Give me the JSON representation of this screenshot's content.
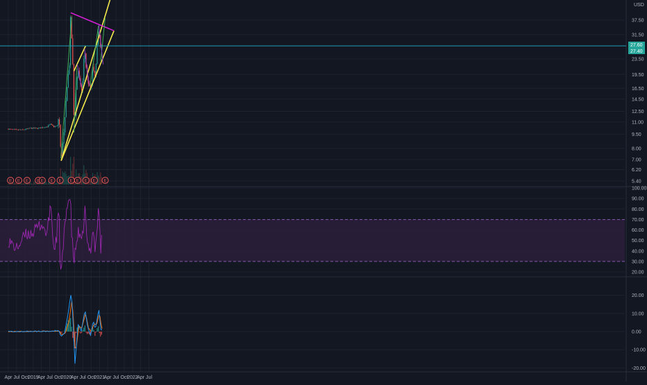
{
  "currency": "USD",
  "price_tags": {
    "upper": "27.60",
    "lower": "27.40"
  },
  "earnings_label": "E",
  "colors": {
    "background": "#131722",
    "grid": "#1e222d",
    "up": "#26a69a",
    "down": "#ef5350",
    "trendline_yellow": "#f5e94d",
    "trendline_magenta": "#d61fd6",
    "horizontal": "#1e9bb5",
    "green_leg": "#3fae55",
    "purple_leg": "#8c3ec4",
    "rsi": "#9c27b0",
    "rsi_band": "#2c1f3a",
    "macd": "#2196f3",
    "signal": "#ff6d00",
    "earnings": "#f05a5a"
  },
  "chart_data": [
    {
      "type": "candlestick",
      "scale": "log",
      "y_ticks": [
        5.4,
        6.2,
        7.0,
        8.0,
        9.5,
        11.0,
        12.5,
        14.5,
        16.5,
        19.5,
        23.5,
        27.5,
        31.5,
        37.5
      ],
      "y_tick_labels": [
        "5.40",
        "6.20",
        "7.00",
        "8.00",
        "9.50",
        "11.00",
        "12.50",
        "14.50",
        "16.50",
        "19.50",
        "23.50",
        "27.50",
        "31.50",
        "37.50"
      ],
      "close_path": [
        [
          "2018-04-01",
          10.1
        ],
        [
          "2018-06-15",
          10.0
        ],
        [
          "2018-09-01",
          10.0
        ],
        [
          "2018-12-01",
          10.2
        ],
        [
          "2019-03-01",
          10.2
        ],
        [
          "2019-06-01",
          10.4
        ],
        [
          "2019-07-10",
          10.7
        ],
        [
          "2019-08-15",
          10.4
        ],
        [
          "2019-10-01",
          10.5
        ],
        [
          "2019-10-10",
          12.8
        ],
        [
          "2019-10-20",
          9.8
        ],
        [
          "2019-11-05",
          7.0
        ],
        [
          "2019-12-10",
          10.0
        ],
        [
          "2020-01-10",
          17.0
        ],
        [
          "2020-02-08",
          23.0
        ],
        [
          "2020-02-18",
          41.0
        ],
        [
          "2020-02-28",
          31.0
        ],
        [
          "2020-03-15",
          20.0
        ],
        [
          "2020-03-28",
          9.8
        ],
        [
          "2020-04-20",
          17.0
        ],
        [
          "2020-05-10",
          21.0
        ],
        [
          "2020-06-01",
          17.0
        ],
        [
          "2020-06-25",
          16.0
        ],
        [
          "2020-07-20",
          27.0
        ],
        [
          "2020-08-15",
          19.0
        ],
        [
          "2020-09-10",
          17.0
        ],
        [
          "2020-10-05",
          16.5
        ],
        [
          "2020-10-20",
          22.0
        ],
        [
          "2020-11-10",
          18.0
        ],
        [
          "2020-12-05",
          27.0
        ],
        [
          "2020-12-25",
          34.0
        ],
        [
          "2021-01-10",
          27.0
        ],
        [
          "2021-01-25",
          26.0
        ],
        [
          "2021-02-03",
          27.5
        ]
      ],
      "earnings_dates": [
        "2018-04-25",
        "2018-07-25",
        "2018-10-25",
        "2019-02-26",
        "2019-04-10",
        "2019-07-25",
        "2019-10-25",
        "2020-02-25",
        "2020-05-05",
        "2020-08-05",
        "2020-11-05",
        "2021-03-05"
      ],
      "trendlines": [
        {
          "color": "yellow",
          "from": [
            "2019-11-05",
            6.9
          ],
          "to": [
            "2021-06-10",
            56.0
          ]
        },
        {
          "color": "yellow",
          "from": [
            "2019-11-05",
            6.9
          ],
          "to": [
            "2021-06-10",
            33.0
          ]
        },
        {
          "color": "yellow",
          "from": [
            "2020-03-25",
            20.3
          ],
          "to": [
            "2020-08-01",
            27.5
          ]
        },
        {
          "color": "magenta",
          "from": [
            "2020-02-18",
            41.0
          ],
          "to": [
            "2021-06-10",
            33.0
          ]
        },
        {
          "color": "green",
          "from": [
            "2019-11-01",
            7.1
          ],
          "to": [
            "2020-03-01",
            39.0
          ]
        },
        {
          "color": "green",
          "from": [
            "2020-03-25",
            9.7
          ],
          "to": [
            "2020-04-25",
            21.0
          ]
        },
        {
          "color": "green",
          "from": [
            "2020-09-20",
            17.0
          ],
          "to": [
            "2020-12-20",
            35.0
          ]
        },
        {
          "color": "green",
          "from": [
            "2021-01-15",
            23.0
          ],
          "to": [
            "2021-03-05",
            38.5
          ]
        },
        {
          "color": "purple",
          "from": [
            "2020-05-01",
            22.0
          ],
          "to": [
            "2020-06-15",
            16.8
          ]
        },
        {
          "color": "purple",
          "from": [
            "2020-07-20",
            26.5
          ],
          "to": [
            "2020-09-10",
            17.0
          ]
        },
        {
          "color": "purple",
          "from": [
            "2020-12-25",
            35.5
          ],
          "to": [
            "2021-02-10",
            22.0
          ]
        }
      ],
      "horizontal_line": 27.5
    },
    {
      "type": "line",
      "name": "RSI",
      "ylim": [
        0,
        100
      ],
      "y_ticks": [
        20,
        30,
        40,
        50,
        60,
        70,
        80,
        90,
        100
      ],
      "y_tick_labels": [
        "20.00",
        "30.00",
        "40.00",
        "50.00",
        "60.00",
        "70.00",
        "80.00",
        "90.00",
        "100.00"
      ],
      "bands": [
        30,
        70
      ],
      "points": [
        [
          "2018-04-01",
          50
        ],
        [
          "2018-07-01",
          42
        ],
        [
          "2018-10-01",
          55
        ],
        [
          "2019-01-01",
          58
        ],
        [
          "2019-04-01",
          66
        ],
        [
          "2019-06-01",
          56
        ],
        [
          "2019-07-15",
          85
        ],
        [
          "2019-08-15",
          40
        ],
        [
          "2019-09-15",
          52
        ],
        [
          "2019-10-10",
          82
        ],
        [
          "2019-10-25",
          28
        ],
        [
          "2019-11-05",
          18
        ],
        [
          "2019-12-15",
          62
        ],
        [
          "2020-01-15",
          88
        ],
        [
          "2020-02-15",
          90
        ],
        [
          "2020-03-01",
          55
        ],
        [
          "2020-03-25",
          30
        ],
        [
          "2020-05-10",
          58
        ],
        [
          "2020-06-20",
          46
        ],
        [
          "2020-07-25",
          80
        ],
        [
          "2020-08-20",
          45
        ],
        [
          "2020-09-25",
          40
        ],
        [
          "2020-10-20",
          63
        ],
        [
          "2020-11-15",
          40
        ],
        [
          "2020-12-25",
          82
        ],
        [
          "2021-01-15",
          42
        ],
        [
          "2021-02-03",
          58
        ]
      ]
    },
    {
      "type": "bar+line",
      "name": "MACD",
      "ylim": [
        -22,
        24
      ],
      "y_ticks": [
        -20,
        -10,
        0,
        10,
        20
      ],
      "y_tick_labels": [
        "-20.00",
        "-10.00",
        "0.00",
        "10.00",
        "20.00"
      ],
      "macd_points": [
        [
          "2018-04-01",
          0
        ],
        [
          "2019-07-01",
          0.2
        ],
        [
          "2019-10-10",
          0.5
        ],
        [
          "2019-11-05",
          -2.5
        ],
        [
          "2019-12-15",
          -0.5
        ],
        [
          "2020-01-15",
          8
        ],
        [
          "2020-02-25",
          22
        ],
        [
          "2020-03-20",
          2
        ],
        [
          "2020-04-05",
          -18
        ],
        [
          "2020-05-10",
          4
        ],
        [
          "2020-06-15",
          0.5
        ],
        [
          "2020-07-25",
          12
        ],
        [
          "2020-08-25",
          2
        ],
        [
          "2020-09-25",
          -2
        ],
        [
          "2020-10-25",
          6
        ],
        [
          "2020-11-15",
          1
        ],
        [
          "2020-12-25",
          12
        ],
        [
          "2021-01-20",
          0
        ],
        [
          "2021-02-03",
          1
        ]
      ],
      "signal_points": [
        [
          "2018-04-01",
          0
        ],
        [
          "2019-07-01",
          0.2
        ],
        [
          "2019-10-15",
          0.3
        ],
        [
          "2019-11-15",
          -1.8
        ],
        [
          "2019-12-25",
          -0.5
        ],
        [
          "2020-02-01",
          6
        ],
        [
          "2020-03-05",
          18
        ],
        [
          "2020-04-10",
          -12
        ],
        [
          "2020-05-20",
          3
        ],
        [
          "2020-06-20",
          2
        ],
        [
          "2020-08-01",
          10
        ],
        [
          "2020-09-01",
          2
        ],
        [
          "2020-10-01",
          0
        ],
        [
          "2020-11-01",
          4
        ],
        [
          "2020-12-01",
          4
        ],
        [
          "2021-01-01",
          10
        ],
        [
          "2021-01-25",
          2
        ],
        [
          "2021-02-03",
          1
        ]
      ]
    }
  ],
  "x_axis": {
    "ticks": [
      {
        "label": "Apr",
        "date": "2018-04-01"
      },
      {
        "label": "Jul",
        "date": "2018-07-01"
      },
      {
        "label": "Oct",
        "date": "2018-10-01"
      },
      {
        "label": "2019",
        "date": "2019-01-01"
      },
      {
        "label": "Apr",
        "date": "2019-04-01"
      },
      {
        "label": "Jul",
        "date": "2019-07-01"
      },
      {
        "label": "Oct",
        "date": "2019-10-01"
      },
      {
        "label": "2020",
        "date": "2020-01-01"
      },
      {
        "label": "Apr",
        "date": "2020-04-01"
      },
      {
        "label": "Jul",
        "date": "2020-07-01"
      },
      {
        "label": "Oct",
        "date": "2020-10-01"
      },
      {
        "label": "2021",
        "date": "2021-01-01"
      },
      {
        "label": "Apr",
        "date": "2021-04-01"
      },
      {
        "label": "Jul",
        "date": "2021-07-01"
      },
      {
        "label": "Oct",
        "date": "2021-10-01"
      },
      {
        "label": "2022",
        "date": "2022-01-01"
      },
      {
        "label": "Apr",
        "date": "2022-04-01"
      },
      {
        "label": "Jul",
        "date": "2022-07-01"
      }
    ]
  }
}
